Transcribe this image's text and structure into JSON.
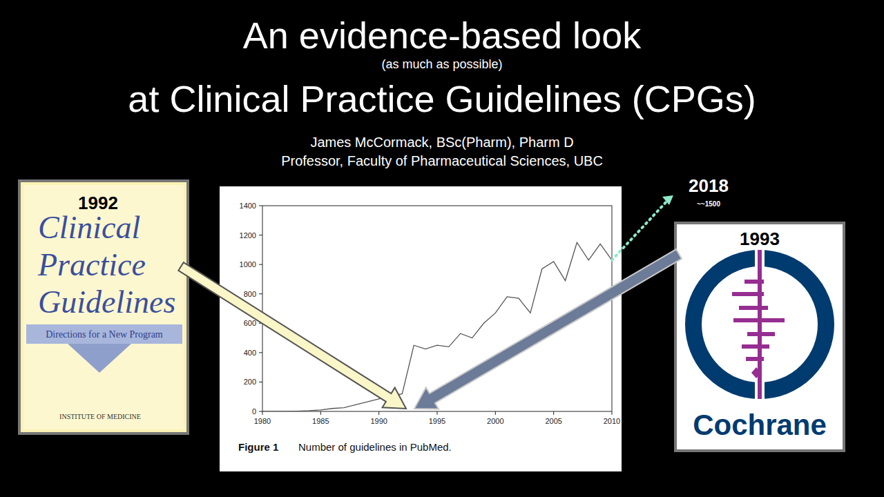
{
  "slide": {
    "title_line1": "An evidence-based look",
    "title_note": "(as much as possible)",
    "title_line2": "at Clinical Practice Guidelines (CPGs)",
    "author": "James McCormack, BSc(Pharm), Pharm D",
    "affiliation": "Professor, Faculty of Pharmaceutical Sciences, UBC",
    "book": {
      "year": "1992",
      "title_lines": [
        "Clinical",
        "Practice",
        "Guidelines"
      ],
      "subtitle": "Directions for a New Program",
      "publisher": "INSTITUTE OF MEDICINE"
    },
    "logo": {
      "year": "1993",
      "name": "Cochrane"
    },
    "projection": {
      "year": "2018",
      "value_label": "~~1500"
    }
  },
  "chart_data": {
    "type": "line",
    "figure_label": "Figure 1",
    "title": "Number of guidelines in PubMed.",
    "color": "#555555",
    "grid": false,
    "x": [
      1980,
      1981,
      1982,
      1983,
      1984,
      1985,
      1986,
      1987,
      1988,
      1989,
      1990,
      1991,
      1992,
      1993,
      1994,
      1995,
      1996,
      1997,
      1998,
      1999,
      2000,
      2001,
      2002,
      2003,
      2004,
      2005,
      2006,
      2007,
      2008,
      2009,
      2010
    ],
    "values": [
      0,
      0,
      0,
      2,
      5,
      10,
      20,
      25,
      45,
      65,
      85,
      100,
      120,
      450,
      425,
      450,
      440,
      530,
      500,
      600,
      670,
      780,
      770,
      670,
      970,
      1020,
      890,
      1150,
      1030,
      1140,
      1030
    ],
    "xlim": [
      1980,
      2010
    ],
    "xticks": [
      1980,
      1985,
      1990,
      1995,
      2000,
      2005,
      2010
    ],
    "ylim": [
      0,
      1400
    ],
    "yticks": [
      0,
      200,
      400,
      600,
      800,
      1000,
      1200,
      1400
    ]
  }
}
